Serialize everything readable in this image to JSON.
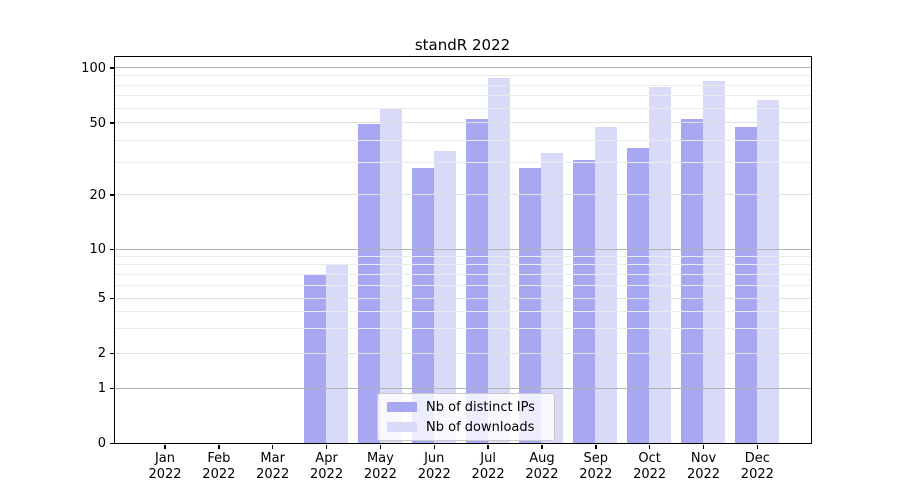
{
  "title": "standR 2022",
  "colors": {
    "ips": "#a7a7f2",
    "downloads": "#d9d9f8",
    "grid_major": "#b2b2b2",
    "grid_mid": "#e0e0e0",
    "grid_minor": "#ebebeb",
    "axis": "#000000",
    "legend_border": "#c9c9c9"
  },
  "chart_data": {
    "type": "bar",
    "title": "standR 2022",
    "categories": [
      "Jan 2022",
      "Feb 2022",
      "Mar 2022",
      "Apr 2022",
      "May 2022",
      "Jun 2022",
      "Jul 2022",
      "Aug 2022",
      "Sep 2022",
      "Oct 2022",
      "Nov 2022",
      "Dec 2022"
    ],
    "series": [
      {
        "name": "Nb of distinct IPs",
        "key": "ips",
        "values": [
          0,
          0,
          0,
          7,
          49,
          28,
          52,
          28,
          31,
          36,
          52,
          47
        ]
      },
      {
        "name": "Nb of downloads",
        "key": "downloads",
        "values": [
          0,
          0,
          0,
          8,
          59,
          35,
          88,
          34,
          47,
          78,
          84,
          66
        ]
      }
    ],
    "xlabel": "",
    "ylabel": "",
    "yscale": "log-like",
    "yticks": [
      0,
      1,
      2,
      5,
      10,
      20,
      50,
      100
    ],
    "ytick_labels": [
      "0",
      "1",
      "2",
      "5",
      "10",
      "20",
      "50",
      "100"
    ],
    "grid_mid_values": [
      2,
      5,
      20,
      50
    ],
    "grid_minor_values": [
      3,
      4,
      6,
      7,
      8,
      9,
      30,
      40,
      60,
      70,
      80,
      90
    ],
    "grid_major_values": [
      1,
      10,
      100
    ],
    "ylim": [
      0,
      114
    ],
    "grid": true,
    "legend_position": "lower center"
  }
}
